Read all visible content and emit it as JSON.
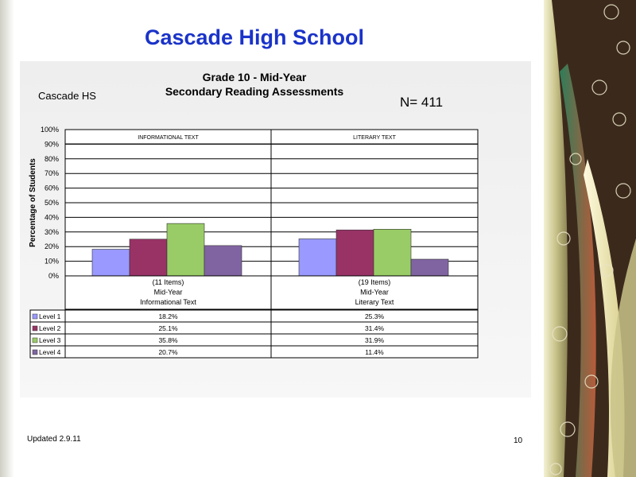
{
  "slide": {
    "title": "Cascade High School",
    "updated": "Updated  2.9.11",
    "page_number": "10"
  },
  "chart": {
    "title_line1": "Grade 10 - Mid-Year",
    "title_line2": "Secondary Reading Assessments",
    "school": "Cascade HS",
    "n_label": "N=   411"
  },
  "chart_data": {
    "type": "bar",
    "ylabel": "Percentage of Students",
    "ylim": [
      0,
      100
    ],
    "yticks": [
      "0%",
      "10%",
      "20%",
      "30%",
      "40%",
      "50%",
      "60%",
      "70%",
      "80%",
      "90%",
      "100%"
    ],
    "panel_headers": [
      "INFORMATIONAL TEXT",
      "LITERARY TEXT"
    ],
    "categories": [
      [
        "(11 Items)",
        "Mid-Year",
        "Informational Text"
      ],
      [
        "(19 Items)",
        "Mid-Year",
        "Literary Text"
      ]
    ],
    "series": [
      {
        "name": "Level 1",
        "color": "#9999ff",
        "values": [
          18.2,
          25.3
        ],
        "labels": [
          "18.2%",
          "25.3%"
        ]
      },
      {
        "name": "Level 2",
        "color": "#993366",
        "values": [
          25.1,
          31.4
        ],
        "labels": [
          "25.1%",
          "31.4%"
        ]
      },
      {
        "name": "Level 3",
        "color": "#99cc66",
        "values": [
          35.8,
          31.9
        ],
        "labels": [
          "35.8%",
          "31.9%"
        ]
      },
      {
        "name": "Level 4",
        "color": "#8064a2",
        "values": [
          20.7,
          11.4
        ],
        "labels": [
          "20.7%",
          "11.4%"
        ]
      }
    ],
    "grid": true
  }
}
